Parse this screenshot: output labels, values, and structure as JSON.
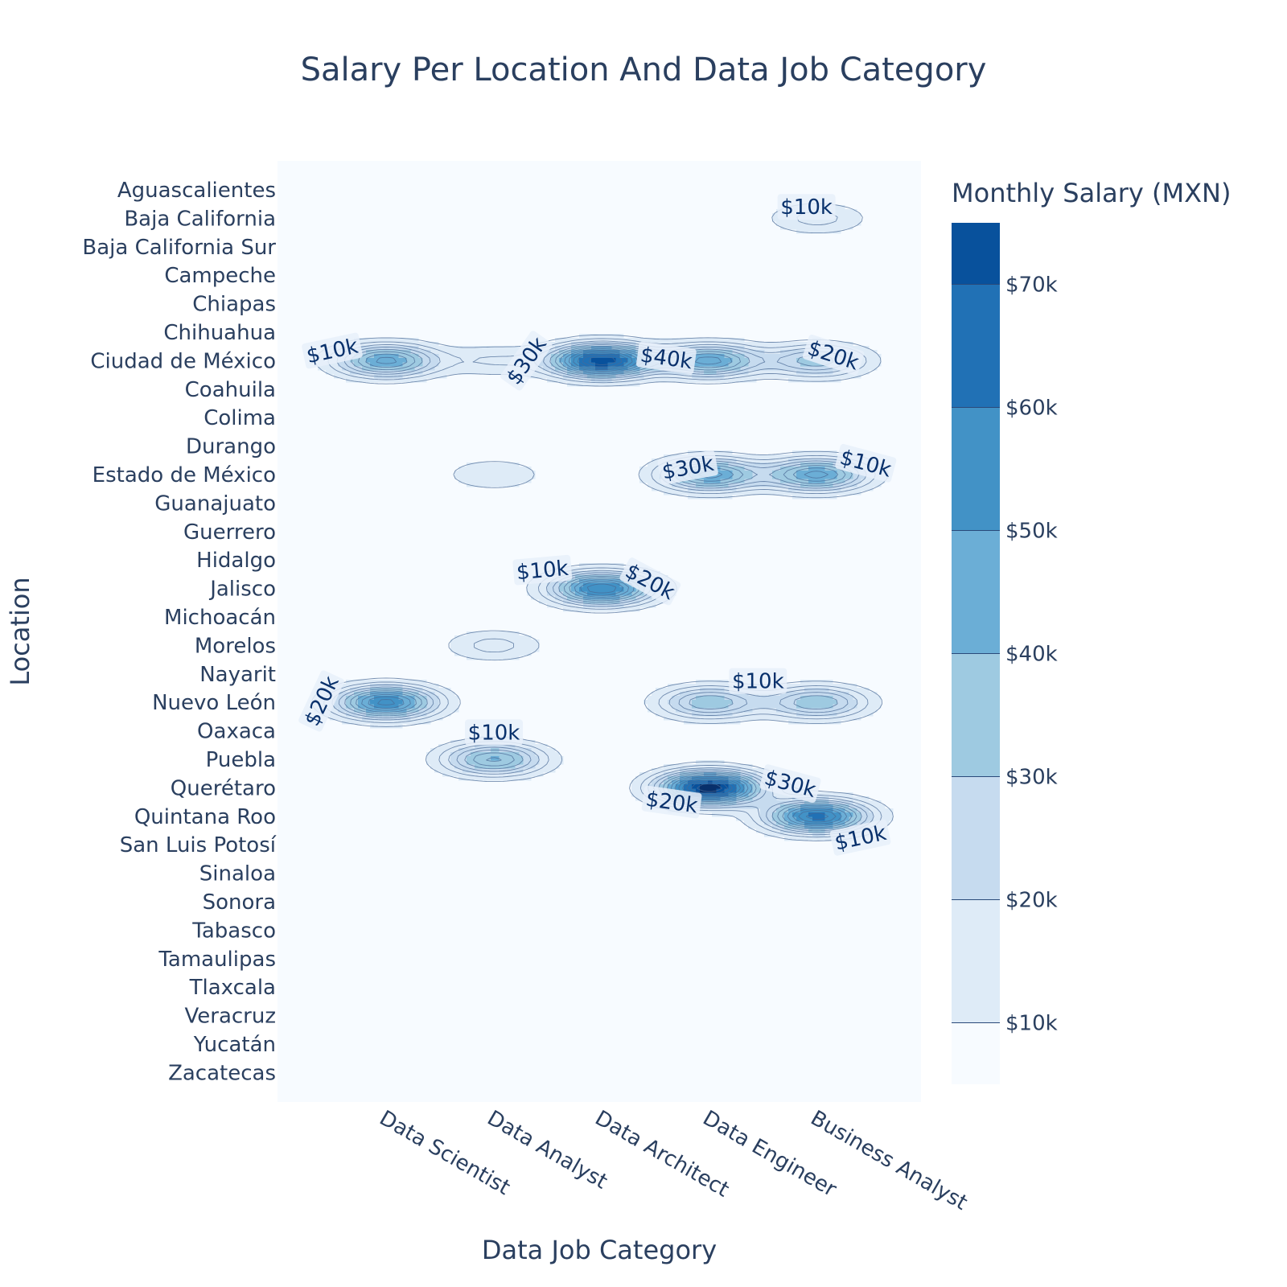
{
  "chart_data": {
    "type": "contour",
    "title": "Salary Per Location And Data Job Category",
    "xlabel": "Data Job Category",
    "ylabel": "Location",
    "categories": [
      "Data Scientist",
      "Data Analyst",
      "Data Architect",
      "Data Engineer",
      "Business Analyst"
    ],
    "locations": [
      "Aguascalientes",
      "Baja California",
      "Baja California Sur",
      "Campeche",
      "Chiapas",
      "Chihuahua",
      "Ciudad de México",
      "Coahuila",
      "Colima",
      "Durango",
      "Estado de México",
      "Guanajuato",
      "Guerrero",
      "Hidalgo",
      "Jalisco",
      "Michoacán",
      "Morelos",
      "Nayarit",
      "Nuevo León",
      "Oaxaca",
      "Puebla",
      "Querétaro",
      "Quintana Roo",
      "San Luis Potosí",
      "Sinaloa",
      "Sonora",
      "Tabasco",
      "Tamaulipas",
      "Tlaxcala",
      "Veracruz",
      "Yucatán",
      "Zacatecas"
    ],
    "colorbar": {
      "title": "Monthly Salary (MXN)",
      "ticks": [
        "$10k",
        "$20k",
        "$30k",
        "$40k",
        "$50k",
        "$60k",
        "$70k"
      ],
      "tick_values": [
        10000,
        20000,
        30000,
        40000,
        50000,
        60000,
        70000
      ],
      "range": [
        5000,
        75000
      ],
      "colorscale": [
        "#f7fbff",
        "#deebf7",
        "#c6dbef",
        "#9ecae1",
        "#6baed6",
        "#4292c6",
        "#2171b5",
        "#08519c",
        "#08306b"
      ]
    },
    "contour_step": 5000,
    "points": [
      {
        "category": "Business Analyst",
        "location": "Baja California",
        "salary": 12000
      },
      {
        "category": "Data Scientist",
        "location": "Ciudad de México",
        "salary": 42000
      },
      {
        "category": "Data Analyst",
        "location": "Ciudad de México",
        "salary": 10000
      },
      {
        "category": "Data Architect",
        "location": "Ciudad de México",
        "salary": 70000
      },
      {
        "category": "Data Engineer",
        "location": "Ciudad de México",
        "salary": 42000
      },
      {
        "category": "Business Analyst",
        "location": "Ciudad de México",
        "salary": 28000
      },
      {
        "category": "Data Analyst",
        "location": "Estado de México",
        "salary": 10000
      },
      {
        "category": "Data Engineer",
        "location": "Estado de México",
        "salary": 42000
      },
      {
        "category": "Business Analyst",
        "location": "Estado de México",
        "salary": 42000
      },
      {
        "category": "Data Architect",
        "location": "Jalisco",
        "salary": 55000
      },
      {
        "category": "Data Analyst",
        "location": "Morelos",
        "salary": 12000
      },
      {
        "category": "Data Scientist",
        "location": "Nuevo León",
        "salary": 52000
      },
      {
        "category": "Data Engineer",
        "location": "Nuevo León",
        "salary": 30000
      },
      {
        "category": "Business Analyst",
        "location": "Nuevo León",
        "salary": 30000
      },
      {
        "category": "Data Analyst",
        "location": "Puebla",
        "salary": 36000
      },
      {
        "category": "Data Engineer",
        "location": "Querétaro",
        "salary": 75000
      },
      {
        "category": "Business Analyst",
        "location": "Quintana Roo",
        "salary": 58000
      }
    ],
    "contour_labels": [
      {
        "text": "$10k",
        "category": "Business Analyst",
        "location": "Baja California",
        "dx": -0.1,
        "dy": -0.4,
        "angle": 0
      },
      {
        "text": "$10k",
        "category": "Data Scientist",
        "location": "Ciudad de México",
        "dx": -0.5,
        "dy": -0.35,
        "angle": -12
      },
      {
        "text": "$30k",
        "category": "Data Analyst",
        "location": "Ciudad de México",
        "dx": 0.3,
        "dy": 0.0,
        "angle": -55
      },
      {
        "text": "$40k",
        "category": "Data Architect",
        "location": "Ciudad de México",
        "dx": 0.6,
        "dy": -0.1,
        "angle": 8
      },
      {
        "text": "$20k",
        "category": "Business Analyst",
        "location": "Ciudad de México",
        "dx": 0.15,
        "dy": -0.2,
        "angle": 18
      },
      {
        "text": "$30k",
        "category": "Data Engineer",
        "location": "Estado de México",
        "dx": -0.2,
        "dy": -0.25,
        "angle": -10
      },
      {
        "text": "$10k",
        "category": "Business Analyst",
        "location": "Estado de México",
        "dx": 0.45,
        "dy": -0.4,
        "angle": 15
      },
      {
        "text": "$10k",
        "category": "Data Analyst",
        "location": "Jalisco",
        "dx": 0.45,
        "dy": -0.65,
        "angle": -5
      },
      {
        "text": "$20k",
        "category": "Data Architect",
        "location": "Jalisco",
        "dx": 0.45,
        "dy": -0.25,
        "angle": 28
      },
      {
        "text": "$20k",
        "category": "Data Scientist",
        "location": "Nuevo León",
        "dx": -0.6,
        "dy": -0.05,
        "angle": -65
      },
      {
        "text": "$10k",
        "category": "Data Engineer",
        "location": "Nuevo León",
        "dx": 0.45,
        "dy": -0.75,
        "angle": 0
      },
      {
        "text": "$10k",
        "category": "Data Analyst",
        "location": "Puebla",
        "dx": 0.0,
        "dy": -0.95,
        "angle": 0
      },
      {
        "text": "$30k",
        "category": "Data Engineer",
        "location": "Querétaro",
        "dx": 0.75,
        "dy": -0.15,
        "angle": 15
      },
      {
        "text": "$20k",
        "category": "Data Architect",
        "location": "Querétaro",
        "dx": 0.65,
        "dy": 0.5,
        "angle": 8
      },
      {
        "text": "$10k",
        "category": "Business Analyst",
        "location": "Quintana Roo",
        "dx": 0.4,
        "dy": 0.75,
        "angle": -12
      }
    ]
  }
}
